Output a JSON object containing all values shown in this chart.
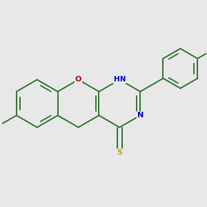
{
  "bg_color": "#e8e8e8",
  "bond_color": "#3a7a3a",
  "O_color": "#cc0000",
  "N_color": "#0000cc",
  "S_color": "#bbaa00",
  "lw": 1.5,
  "ilw": 1.4,
  "figsize": [
    3.0,
    3.0
  ],
  "dpi": 100,
  "xlim": [
    -1.55,
    1.55
  ],
  "ylim": [
    -1.05,
    1.05
  ]
}
